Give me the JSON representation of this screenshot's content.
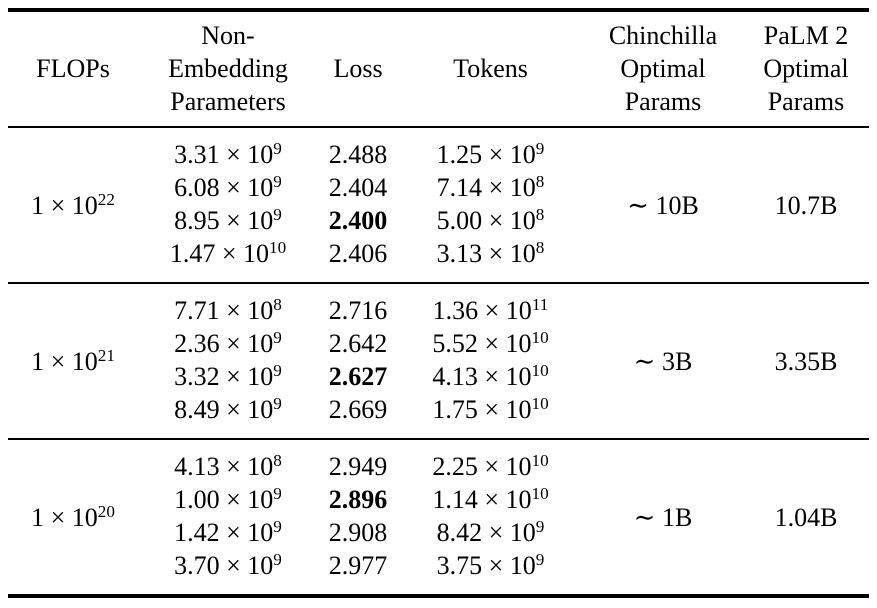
{
  "page": {
    "background_color": "#ffffff",
    "text_color": "#000000",
    "rule_color": "#000000"
  },
  "table": {
    "multiply_sign": "×",
    "base": "10",
    "headers": [
      {
        "label": "FLOPs"
      },
      {
        "label": "Non-\nEmbedding\nParameters"
      },
      {
        "label": "Loss"
      },
      {
        "label": "Tokens"
      },
      {
        "label": "Chinchilla\nOptimal\nParams"
      },
      {
        "label": "PaLM 2\nOptimal\nParams"
      }
    ],
    "groups": [
      {
        "flops": {
          "mant": "1",
          "exp": "22"
        },
        "rows": [
          {
            "params": {
              "mant": "3.31",
              "exp": "9"
            },
            "loss": "2.488",
            "loss_bold": false,
            "tokens": {
              "mant": "1.25",
              "exp": "9"
            }
          },
          {
            "params": {
              "mant": "6.08",
              "exp": "9"
            },
            "loss": "2.404",
            "loss_bold": false,
            "tokens": {
              "mant": "7.14",
              "exp": "8"
            }
          },
          {
            "params": {
              "mant": "8.95",
              "exp": "9"
            },
            "loss": "2.400",
            "loss_bold": true,
            "tokens": {
              "mant": "5.00",
              "exp": "8"
            }
          },
          {
            "params": {
              "mant": "1.47",
              "exp": "10"
            },
            "loss": "2.406",
            "loss_bold": false,
            "tokens": {
              "mant": "3.13",
              "exp": "8"
            }
          }
        ],
        "chinchilla_optimal": "∼ 10B",
        "palm2_optimal": "10.7B"
      },
      {
        "flops": {
          "mant": "1",
          "exp": "21"
        },
        "rows": [
          {
            "params": {
              "mant": "7.71",
              "exp": "8"
            },
            "loss": "2.716",
            "loss_bold": false,
            "tokens": {
              "mant": "1.36",
              "exp": "11"
            }
          },
          {
            "params": {
              "mant": "2.36",
              "exp": "9"
            },
            "loss": "2.642",
            "loss_bold": false,
            "tokens": {
              "mant": "5.52",
              "exp": "10"
            }
          },
          {
            "params": {
              "mant": "3.32",
              "exp": "9"
            },
            "loss": "2.627",
            "loss_bold": true,
            "tokens": {
              "mant": "4.13",
              "exp": "10"
            }
          },
          {
            "params": {
              "mant": "8.49",
              "exp": "9"
            },
            "loss": "2.669",
            "loss_bold": false,
            "tokens": {
              "mant": "1.75",
              "exp": "10"
            }
          }
        ],
        "chinchilla_optimal": "∼ 3B",
        "palm2_optimal": "3.35B"
      },
      {
        "flops": {
          "mant": "1",
          "exp": "20"
        },
        "rows": [
          {
            "params": {
              "mant": "4.13",
              "exp": "8"
            },
            "loss": "2.949",
            "loss_bold": false,
            "tokens": {
              "mant": "2.25",
              "exp": "10"
            }
          },
          {
            "params": {
              "mant": "1.00",
              "exp": "9"
            },
            "loss": "2.896",
            "loss_bold": true,
            "tokens": {
              "mant": "1.14",
              "exp": "10"
            }
          },
          {
            "params": {
              "mant": "1.42",
              "exp": "9"
            },
            "loss": "2.908",
            "loss_bold": false,
            "tokens": {
              "mant": "8.42",
              "exp": "9"
            }
          },
          {
            "params": {
              "mant": "3.70",
              "exp": "9"
            },
            "loss": "2.977",
            "loss_bold": false,
            "tokens": {
              "mant": "3.75",
              "exp": "9"
            }
          }
        ],
        "chinchilla_optimal": "∼ 1B",
        "palm2_optimal": "1.04B"
      }
    ]
  }
}
